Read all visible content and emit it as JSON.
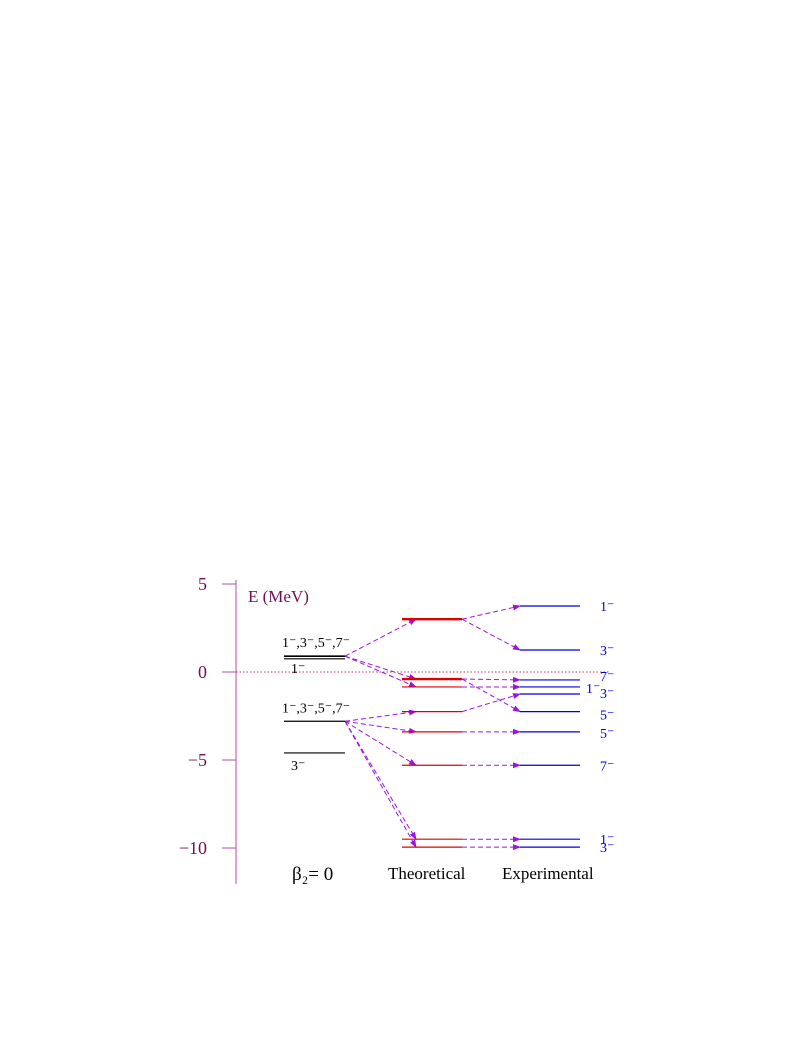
{
  "colors": {
    "axis": "#b24fb2",
    "axis_text": "#6b1060",
    "base_level": "#000000",
    "theory": "#e00000",
    "experiment": "#0000dd",
    "arrow": "#9b14e0",
    "zero_line": "#cc3355",
    "background": "#ffffff"
  },
  "axis": {
    "label": "E (MeV)",
    "ticks": [
      {
        "value": 5,
        "label": "5"
      },
      {
        "value": 0,
        "label": "0"
      },
      {
        "value": -5,
        "label": "−5"
      },
      {
        "value": -10,
        "label": "−10"
      }
    ]
  },
  "columns": {
    "base": "β₂= 0",
    "theory": "Theoretical",
    "experiment": "Experimental"
  },
  "base_levels": {
    "upper_group": {
      "energy": 0.9,
      "label": "1⁻,3⁻,5⁻,7⁻"
    },
    "upper_single": {
      "energy": 0.75,
      "label": "1⁻"
    },
    "middle_group": {
      "energy": -2.8,
      "label": "1⁻,3⁻,5⁻,7⁻"
    },
    "lower_single": {
      "energy": -4.6,
      "label": "3⁻"
    }
  },
  "theory_levels": [
    {
      "id": "t1",
      "energy": 3.0,
      "bold": true
    },
    {
      "id": "t2",
      "energy": -0.4,
      "bold": true
    },
    {
      "id": "t3",
      "energy": -0.85,
      "bold": false
    },
    {
      "id": "t4",
      "energy": -2.25,
      "bold": false
    },
    {
      "id": "t5",
      "energy": -3.4,
      "bold": false
    },
    {
      "id": "t6",
      "energy": -5.3,
      "bold": false
    },
    {
      "id": "t7",
      "energy": -9.5,
      "bold": false
    },
    {
      "id": "t8",
      "energy": -9.95,
      "bold": false
    }
  ],
  "experiment_levels": [
    {
      "id": "e1",
      "energy": 3.75,
      "label": "1⁻"
    },
    {
      "id": "e2",
      "energy": 1.25,
      "label": "3⁻"
    },
    {
      "id": "e3",
      "energy": -0.45,
      "label": "7⁻"
    },
    {
      "id": "e4",
      "energy": -0.85,
      "label": "1⁻"
    },
    {
      "id": "e5",
      "energy": -1.25,
      "label": "3⁻"
    },
    {
      "id": "e6",
      "energy": -2.25,
      "label": "5⁻"
    },
    {
      "id": "e7",
      "energy": -3.4,
      "label": "5⁻"
    },
    {
      "id": "e8",
      "energy": -5.3,
      "label": "7⁻"
    },
    {
      "id": "e9",
      "energy": -9.5,
      "label": "1⁻"
    },
    {
      "id": "e10",
      "energy": -9.95,
      "label": "3⁻"
    }
  ],
  "base_to_theory": [
    {
      "from": "upper_group",
      "to": "t1"
    },
    {
      "from": "upper_group",
      "to": "t2"
    },
    {
      "from": "upper_group",
      "to": "t3"
    },
    {
      "from": "middle_group",
      "to": "t4"
    },
    {
      "from": "middle_group",
      "to": "t5"
    },
    {
      "from": "middle_group",
      "to": "t6"
    },
    {
      "from": "middle_group",
      "to": "t7"
    },
    {
      "from": "middle_group",
      "to": "t8"
    }
  ],
  "theory_to_experiment": [
    {
      "from": "t1",
      "to": "e1"
    },
    {
      "from": "t1",
      "to": "e2"
    },
    {
      "from": "t2",
      "to": "e3"
    },
    {
      "from": "t2",
      "to": "e6"
    },
    {
      "from": "t3",
      "to": "e4"
    },
    {
      "from": "t4",
      "to": "e5"
    },
    {
      "from": "t5",
      "to": "e7"
    },
    {
      "from": "t6",
      "to": "e8"
    },
    {
      "from": "t7",
      "to": "e9"
    },
    {
      "from": "t8",
      "to": "e10"
    }
  ]
}
